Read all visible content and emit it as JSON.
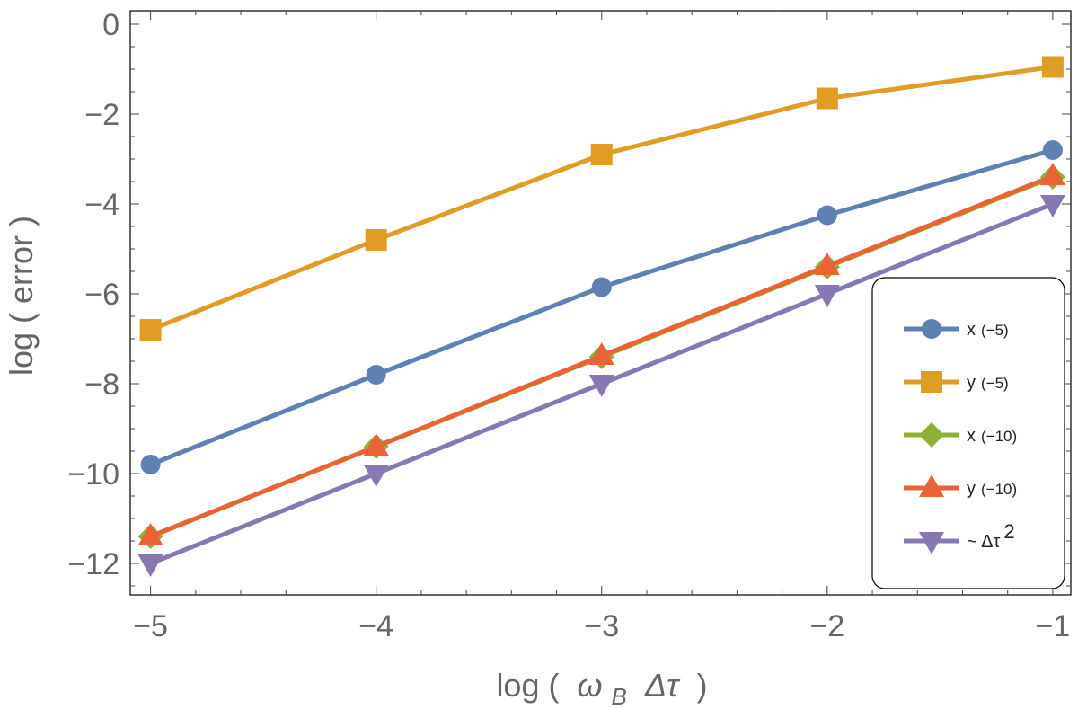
{
  "chart_data": {
    "type": "line",
    "x_axis": {
      "label_prefix": "log (",
      "label_main": "ω",
      "label_sub": "B",
      "label_tail": "Δτ",
      "label_suffix": ")",
      "range": [
        -5.09,
        -0.92
      ],
      "ticks": [
        -5,
        -4,
        -3,
        -2,
        -1
      ],
      "tick_labels": [
        "−5",
        "−4",
        "−3",
        "−2",
        "−1"
      ]
    },
    "y_axis": {
      "label": "log ( error )",
      "range": [
        -12.7,
        0.3
      ],
      "ticks": [
        0,
        -2,
        -4,
        -6,
        -8,
        -10,
        -12
      ],
      "tick_labels": [
        "0",
        "−2",
        "−4",
        "−6",
        "−8",
        "−10",
        "−12"
      ]
    },
    "x": [
      -5,
      -4,
      -3,
      -2,
      -1
    ],
    "series": [
      {
        "name": "x (-5)",
        "label_main": "x",
        "label_paren": "(−5)",
        "color": "#5E81B5",
        "marker": "circle",
        "values": [
          -9.8,
          -7.8,
          -5.85,
          -4.25,
          -2.8
        ]
      },
      {
        "name": "y (-5)",
        "label_main": "y",
        "label_paren": "(−5)",
        "color": "#E19C24",
        "marker": "square",
        "values": [
          -6.8,
          -4.8,
          -2.9,
          -1.65,
          -0.95
        ]
      },
      {
        "name": "x (-10)",
        "label_main": "x",
        "label_paren": "(−10)",
        "color": "#8FB032",
        "marker": "diamond",
        "values": [
          -11.4,
          -9.4,
          -7.4,
          -5.4,
          -3.4
        ]
      },
      {
        "name": "y (-10)",
        "label_main": "y",
        "label_paren": "(−10)",
        "color": "#EB6235",
        "marker": "triangle-up",
        "values": [
          -11.4,
          -9.4,
          -7.38,
          -5.38,
          -3.38
        ]
      },
      {
        "name": "~ Δτ 2",
        "label_main": "~ Δτ",
        "label_sup": "2",
        "color": "#8778B3",
        "marker": "triangle-down",
        "values": [
          -12.0,
          -10.0,
          -8.0,
          -6.0,
          -4.0
        ]
      }
    ],
    "legend": {
      "placement": "bottom-right, inside plot"
    }
  }
}
